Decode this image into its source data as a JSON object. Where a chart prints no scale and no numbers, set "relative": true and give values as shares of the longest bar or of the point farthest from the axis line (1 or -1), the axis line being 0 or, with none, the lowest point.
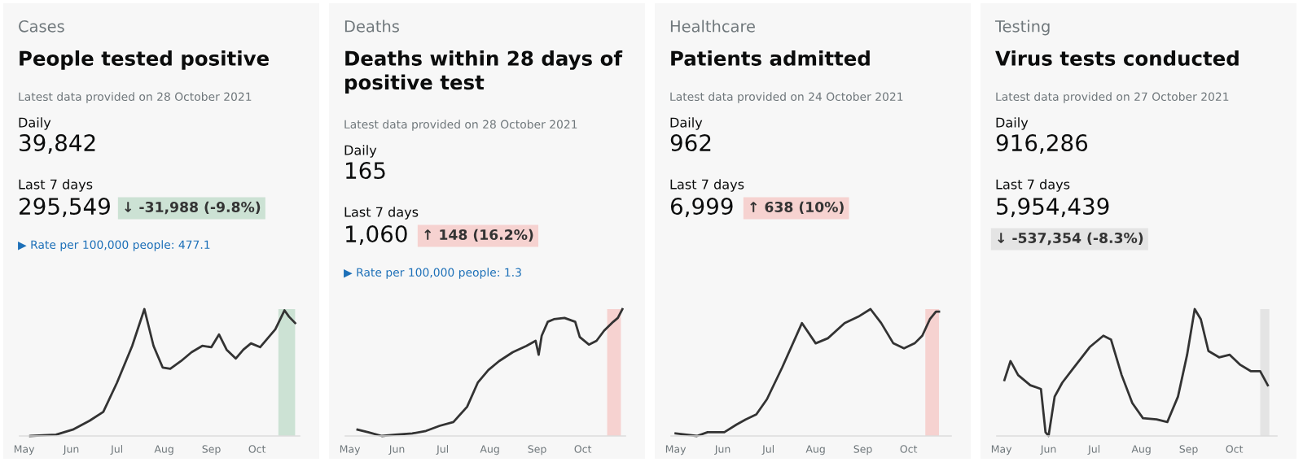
{
  "chart_data": [
    {
      "type": "line",
      "subtitle": "Cases",
      "title": "People tested positive",
      "relative": true,
      "tick_labels": "x",
      "xlim": [
        "2021-04-28",
        "2021-10-29"
      ],
      "line_style": "solid",
      "marker": "none",
      "grid": false,
      "legend": false,
      "annotations": [
        "Latest data provided on 28 October 2021",
        "Daily",
        "39,842",
        "Last 7 days",
        "295,549",
        "↓ -31,988 (-9.8%)",
        "▶ Rate per 100,000 people: 477.1"
      ],
      "x": [
        "2021-05-05",
        "2021-05-22",
        "2021-06-02",
        "2021-06-13",
        "2021-06-22",
        "2021-07-01",
        "2021-07-11",
        "2021-07-19",
        "2021-07-25",
        "2021-07-31",
        "2021-08-05",
        "2021-08-12",
        "2021-08-19",
        "2021-08-26",
        "2021-09-01",
        "2021-09-06",
        "2021-09-11",
        "2021-09-17",
        "2021-09-22",
        "2021-09-27",
        "2021-10-03",
        "2021-10-08",
        "2021-10-13",
        "2021-10-19",
        "2021-10-22",
        "2021-10-26"
      ],
      "series": [
        {
          "color": "#333333",
          "values": [
            0.0,
            0.01,
            0.05,
            0.12,
            0.19,
            0.42,
            0.71,
            1.0,
            0.71,
            0.54,
            0.53,
            0.59,
            0.66,
            0.71,
            0.7,
            0.8,
            0.68,
            0.61,
            0.68,
            0.73,
            0.7,
            0.77,
            0.84,
            0.99,
            0.94,
            0.89
          ]
        }
      ],
      "xticks": [
        {
          "value": "2021-05-01",
          "label": "May"
        },
        {
          "value": "2021-06-01",
          "label": "Jun"
        },
        {
          "value": "2021-07-01",
          "label": "Jul"
        },
        {
          "value": "2021-08-01",
          "label": "Aug"
        },
        {
          "value": "2021-09-01",
          "label": "Sep"
        },
        {
          "value": "2021-10-01",
          "label": "Oct"
        }
      ],
      "bands": [
        {
          "axis": "x",
          "from": "2021-10-15",
          "to": "2021-10-26",
          "color": "#cce2d4"
        }
      ]
    },
    {
      "type": "line",
      "subtitle": "Deaths",
      "title": "Deaths within 28 days of\npositive test",
      "relative": true,
      "tick_labels": "x",
      "xlim": [
        "2021-04-28",
        "2021-10-29"
      ],
      "line_style": "solid",
      "marker": "none",
      "grid": false,
      "legend": false,
      "annotations": [
        "Latest data provided on 28 October 2021",
        "Daily",
        "165",
        "Last 7 days",
        "1,060",
        "↑ 148 (16.2%)",
        "▶ Rate per 100,000 people: 1.3"
      ],
      "x": [
        "2021-05-06",
        "2021-05-13",
        "2021-05-22",
        "2021-05-31",
        "2021-06-11",
        "2021-06-20",
        "2021-06-29",
        "2021-07-08",
        "2021-07-17",
        "2021-07-24",
        "2021-07-31",
        "2021-08-07",
        "2021-08-16",
        "2021-08-25",
        "2021-08-31",
        "2021-09-02",
        "2021-09-04",
        "2021-09-08",
        "2021-09-12",
        "2021-09-19",
        "2021-09-26",
        "2021-09-29",
        "2021-10-05",
        "2021-10-10",
        "2021-10-15",
        "2021-10-21",
        "2021-10-24",
        "2021-10-27"
      ],
      "series": [
        {
          "color": "#333333",
          "values": [
            0.05,
            0.03,
            0.0,
            0.01,
            0.02,
            0.04,
            0.08,
            0.11,
            0.23,
            0.42,
            0.52,
            0.59,
            0.66,
            0.71,
            0.75,
            0.64,
            0.79,
            0.9,
            0.92,
            0.93,
            0.9,
            0.78,
            0.72,
            0.75,
            0.83,
            0.9,
            0.93,
            1.0
          ]
        }
      ],
      "xticks": [
        {
          "value": "2021-05-01",
          "label": "May"
        },
        {
          "value": "2021-06-01",
          "label": "Jun"
        },
        {
          "value": "2021-07-01",
          "label": "Jul"
        },
        {
          "value": "2021-08-01",
          "label": "Aug"
        },
        {
          "value": "2021-09-01",
          "label": "Sep"
        },
        {
          "value": "2021-10-01",
          "label": "Oct"
        }
      ],
      "bands": [
        {
          "axis": "x",
          "from": "2021-10-17",
          "to": "2021-10-26",
          "color": "#f6d2d0"
        }
      ]
    },
    {
      "type": "line",
      "subtitle": "Healthcare",
      "title": "Patients admitted",
      "relative": true,
      "tick_labels": "x",
      "xlim": [
        "2021-04-28",
        "2021-10-29"
      ],
      "line_style": "solid",
      "marker": "none",
      "grid": false,
      "legend": false,
      "annotations": [
        "Latest data provided on 24 October 2021",
        "Daily",
        "962",
        "Last 7 days",
        "6,999",
        "↑ 638 (10%)"
      ],
      "x": [
        "2021-05-01",
        "2021-05-15",
        "2021-05-22",
        "2021-06-02",
        "2021-06-10",
        "2021-06-16",
        "2021-06-23",
        "2021-06-30",
        "2021-07-10",
        "2021-07-23",
        "2021-08-01",
        "2021-08-09",
        "2021-08-20",
        "2021-08-29",
        "2021-09-06",
        "2021-09-13",
        "2021-09-21",
        "2021-09-28",
        "2021-10-05",
        "2021-10-10",
        "2021-10-15",
        "2021-10-19",
        "2021-10-21"
      ],
      "series": [
        {
          "color": "#333333",
          "values": [
            0.02,
            0.0,
            0.03,
            0.03,
            0.09,
            0.13,
            0.17,
            0.29,
            0.54,
            0.89,
            0.73,
            0.77,
            0.89,
            0.94,
            1.0,
            0.89,
            0.73,
            0.69,
            0.73,
            0.79,
            0.92,
            0.98,
            0.98
          ]
        }
      ],
      "xticks": [
        {
          "value": "2021-05-01",
          "label": "May"
        },
        {
          "value": "2021-06-01",
          "label": "Jun"
        },
        {
          "value": "2021-07-01",
          "label": "Jul"
        },
        {
          "value": "2021-08-01",
          "label": "Aug"
        },
        {
          "value": "2021-09-01",
          "label": "Sep"
        },
        {
          "value": "2021-10-01",
          "label": "Oct"
        }
      ],
      "bands": [
        {
          "axis": "x",
          "from": "2021-10-12",
          "to": "2021-10-21",
          "color": "#f6d2d0"
        }
      ]
    },
    {
      "type": "line",
      "subtitle": "Testing",
      "title": "Virus tests conducted",
      "relative": true,
      "tick_labels": "x",
      "xlim": [
        "2021-04-28",
        "2021-10-29"
      ],
      "line_style": "solid",
      "marker": "none",
      "grid": false,
      "legend": false,
      "annotations": [
        "Latest data provided on 27 October 2021",
        "Daily",
        "916,286",
        "Last 7 days",
        "5,954,439",
        "↓ -537,354 (-8.3%)"
      ],
      "x": [
        "2021-05-03",
        "2021-05-07",
        "2021-05-12",
        "2021-05-20",
        "2021-05-27",
        "2021-05-30",
        "2021-06-01",
        "2021-06-05",
        "2021-06-10",
        "2021-06-17",
        "2021-06-28",
        "2021-07-07",
        "2021-07-12",
        "2021-07-19",
        "2021-07-26",
        "2021-08-02",
        "2021-08-11",
        "2021-08-18",
        "2021-08-25",
        "2021-08-31",
        "2021-09-05",
        "2021-09-09",
        "2021-09-14",
        "2021-09-21",
        "2021-09-28",
        "2021-10-05",
        "2021-10-12",
        "2021-10-18",
        "2021-10-23"
      ],
      "series": [
        {
          "color": "#333333",
          "values": [
            0.44,
            0.59,
            0.48,
            0.4,
            0.37,
            0.03,
            0.0,
            0.31,
            0.42,
            0.53,
            0.7,
            0.79,
            0.76,
            0.48,
            0.26,
            0.14,
            0.13,
            0.11,
            0.31,
            0.64,
            1.0,
            0.92,
            0.67,
            0.62,
            0.64,
            0.56,
            0.51,
            0.51,
            0.4
          ]
        }
      ],
      "xticks": [
        {
          "value": "2021-05-01",
          "label": "May"
        },
        {
          "value": "2021-06-01",
          "label": "Jun"
        },
        {
          "value": "2021-07-01",
          "label": "Jul"
        },
        {
          "value": "2021-08-01",
          "label": "Aug"
        },
        {
          "value": "2021-09-01",
          "label": "Sep"
        },
        {
          "value": "2021-10-01",
          "label": "Oct"
        }
      ],
      "bands": [
        {
          "axis": "x",
          "from": "2021-10-18",
          "to": "2021-10-24",
          "color": "#e4e4e4"
        }
      ]
    }
  ]
}
